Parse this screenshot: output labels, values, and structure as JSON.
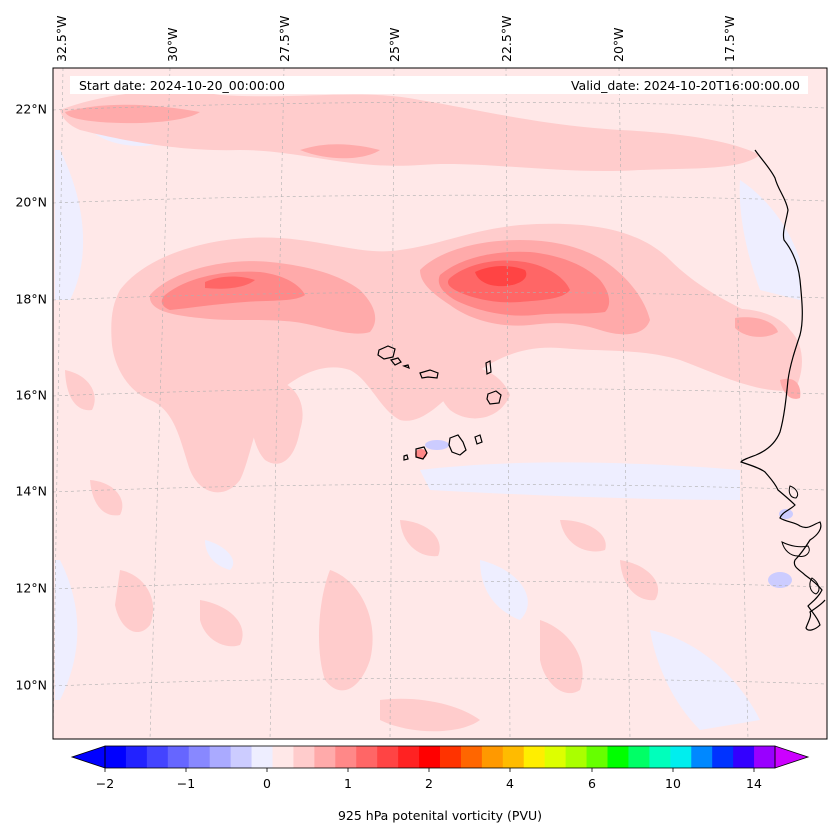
{
  "header": {
    "start_date": "Start date: 2024-10-20_00:00:00",
    "valid_date": "Valid_date: 2024-10-20T16:00:00.00"
  },
  "longitude_labels": [
    "32.5°W",
    "30°W",
    "27.5°W",
    "25°W",
    "22.5°W",
    "20°W",
    "17.5°W"
  ],
  "latitude_labels": [
    "22°N",
    "20°N",
    "18°N",
    "16°N",
    "14°N",
    "12°N",
    "10°N"
  ],
  "colorbar": {
    "title": "925 hPa potenital vorticity (PVU)",
    "tick_labels": [
      "−2",
      "−1",
      "0",
      "1",
      "2",
      "4",
      "6",
      "10",
      "14"
    ],
    "colors": [
      "#0000ff",
      "#2222ff",
      "#4444ff",
      "#6666ff",
      "#8888ff",
      "#aaaaff",
      "#ccccff",
      "#eeeeff",
      "#ffe8e8",
      "#ffcccc",
      "#ffaaaa",
      "#ff8888",
      "#ff6666",
      "#ff4444",
      "#ff2222",
      "#ff0000",
      "#ff3300",
      "#ff6600",
      "#ff9900",
      "#ffbb00",
      "#ffee00",
      "#ddff00",
      "#aaff00",
      "#66ff00",
      "#00ff00",
      "#00ff66",
      "#00ffbb",
      "#00eeee",
      "#0088ff",
      "#0033ff",
      "#3300ff",
      "#9900ff"
    ],
    "under_color": "#0000ff",
    "over_color": "#cc00ff"
  },
  "colors": {
    "background_field": "#ffe8e8",
    "light_negative": "#eeeeff",
    "negative": "#ccccff",
    "pos_1": "#ffcccc",
    "pos_2": "#ffaaaa",
    "pos_3": "#ff8888",
    "pos_4": "#ff6666",
    "pos_5": "#ff4444",
    "coastline": "#000000"
  }
}
